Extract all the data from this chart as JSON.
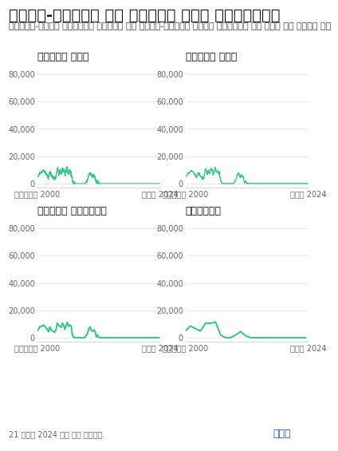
{
  "title": "उतार-चढ़ाव के प्रति सही नज़रिया",
  "subtitle": "लॉन्ग-टर्म ग्राफ़ देखने पर उतार-चढ़ाव आपकी नज़रों से ओझल हो जाता है",
  "subplot_titles": [
    "प्रति दिन",
    "प्रति माह",
    "प्रति तिमाही",
    "सालाना"
  ],
  "x_labels": [
    "जनवरी 2000",
    "जून 2024"
  ],
  "y_ticks": [
    0,
    20000,
    40000,
    60000,
    80000
  ],
  "y_tick_labels": [
    "0",
    "20,000",
    "40,000",
    "60,000",
    "80,000"
  ],
  "line_color": "#2bc97e",
  "background_color": "#ffffff",
  "footer_text": "21 जून 2024 तक का डेटा.",
  "brand_text": "धनक",
  "brand_color": "#1a4fd6",
  "ylim": [
    -3000,
    88000
  ],
  "title_fontsize": 14,
  "subtitle_fontsize": 8,
  "subplot_title_fontsize": 9,
  "tick_fontsize": 7
}
